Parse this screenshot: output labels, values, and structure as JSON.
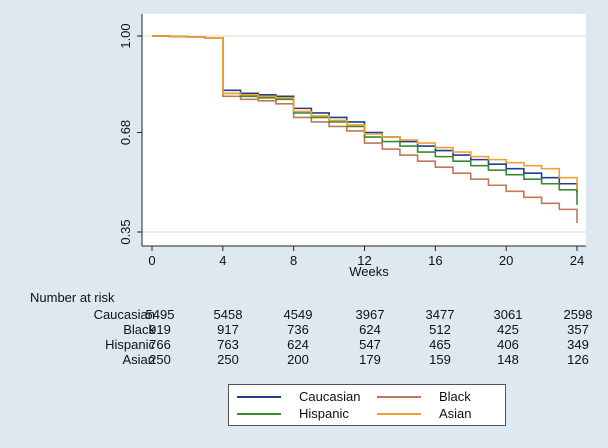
{
  "chart_data": {
    "type": "line",
    "title": "",
    "xlabel": "Weeks",
    "ylabel": "",
    "xlim": [
      0,
      24
    ],
    "ylim": [
      0.35,
      1.0
    ],
    "xticks": [
      0,
      4,
      8,
      12,
      16,
      20,
      24
    ],
    "xtick_labels": [
      "0",
      "4",
      "8",
      "12",
      "16",
      "20",
      "24"
    ],
    "yticks": [
      1.0,
      0.68,
      0.35
    ],
    "ytick_labels": [
      "1.00",
      "0.68",
      "0.35"
    ],
    "legend_position": "bottom",
    "series": [
      {
        "name": "Caucasian",
        "color": "#1f3f8f",
        "x": [
          0,
          1,
          2,
          3,
          4,
          4,
          5,
          6,
          7,
          8,
          8,
          9,
          10,
          11,
          12,
          12,
          13,
          14,
          15,
          16,
          17,
          18,
          19,
          20,
          21,
          22,
          23,
          24
        ],
        "y": [
          1.0,
          0.998,
          0.996,
          0.994,
          0.992,
          0.82,
          0.81,
          0.805,
          0.8,
          0.79,
          0.76,
          0.745,
          0.73,
          0.715,
          0.7,
          0.68,
          0.665,
          0.65,
          0.635,
          0.62,
          0.605,
          0.59,
          0.575,
          0.56,
          0.545,
          0.53,
          0.51,
          0.48
        ]
      },
      {
        "name": "Black",
        "color": "#c0785a",
        "x": [
          0,
          1,
          2,
          3,
          4,
          4,
          5,
          6,
          7,
          8,
          8,
          9,
          10,
          11,
          12,
          12,
          13,
          14,
          15,
          16,
          17,
          18,
          19,
          20,
          21,
          22,
          23,
          24
        ],
        "y": [
          1.0,
          0.998,
          0.996,
          0.994,
          0.992,
          0.8,
          0.79,
          0.785,
          0.775,
          0.765,
          0.73,
          0.715,
          0.7,
          0.685,
          0.67,
          0.645,
          0.625,
          0.605,
          0.585,
          0.565,
          0.545,
          0.525,
          0.505,
          0.485,
          0.465,
          0.445,
          0.425,
          0.38
        ]
      },
      {
        "name": "Hispanic",
        "color": "#3a8a2e",
        "x": [
          0,
          1,
          2,
          3,
          4,
          4,
          5,
          6,
          7,
          8,
          8,
          9,
          10,
          11,
          12,
          12,
          13,
          14,
          15,
          16,
          17,
          18,
          19,
          20,
          21,
          22,
          23,
          24
        ],
        "y": [
          1.0,
          0.998,
          0.996,
          0.994,
          0.992,
          0.81,
          0.8,
          0.795,
          0.79,
          0.78,
          0.745,
          0.73,
          0.715,
          0.7,
          0.685,
          0.665,
          0.65,
          0.635,
          0.615,
          0.6,
          0.585,
          0.57,
          0.555,
          0.54,
          0.525,
          0.51,
          0.49,
          0.44
        ]
      },
      {
        "name": "Asian",
        "color": "#f0a030",
        "x": [
          0,
          1,
          2,
          3,
          4,
          4,
          5,
          6,
          7,
          8,
          8,
          9,
          10,
          11,
          12,
          12,
          13,
          14,
          15,
          16,
          17,
          18,
          19,
          20,
          21,
          22,
          23,
          24
        ],
        "y": [
          1.0,
          0.998,
          0.996,
          0.994,
          0.992,
          0.81,
          0.805,
          0.8,
          0.795,
          0.785,
          0.75,
          0.735,
          0.72,
          0.705,
          0.69,
          0.675,
          0.665,
          0.655,
          0.645,
          0.63,
          0.615,
          0.6,
          0.59,
          0.58,
          0.57,
          0.56,
          0.53,
          0.49
        ]
      }
    ]
  },
  "risk_table": {
    "title": "Number at risk",
    "rows": [
      {
        "name": "Caucasian",
        "values": [
          "5495",
          "5458",
          "4549",
          "3967",
          "3477",
          "3061",
          "2598"
        ]
      },
      {
        "name": "Black",
        "values": [
          "919",
          "917",
          "736",
          "624",
          "512",
          "425",
          "357"
        ]
      },
      {
        "name": "Hispanic",
        "values": [
          "766",
          "763",
          "624",
          "547",
          "465",
          "406",
          "349"
        ]
      },
      {
        "name": "Asian",
        "values": [
          "250",
          "250",
          "200",
          "179",
          "159",
          "148",
          "126"
        ]
      }
    ]
  },
  "legend": {
    "items": [
      {
        "label": "Caucasian",
        "color": "#1f3f8f"
      },
      {
        "label": "Black",
        "color": "#c0785a"
      },
      {
        "label": "Hispanic",
        "color": "#3a8a2e"
      },
      {
        "label": "Asian",
        "color": "#f0a030"
      }
    ]
  }
}
